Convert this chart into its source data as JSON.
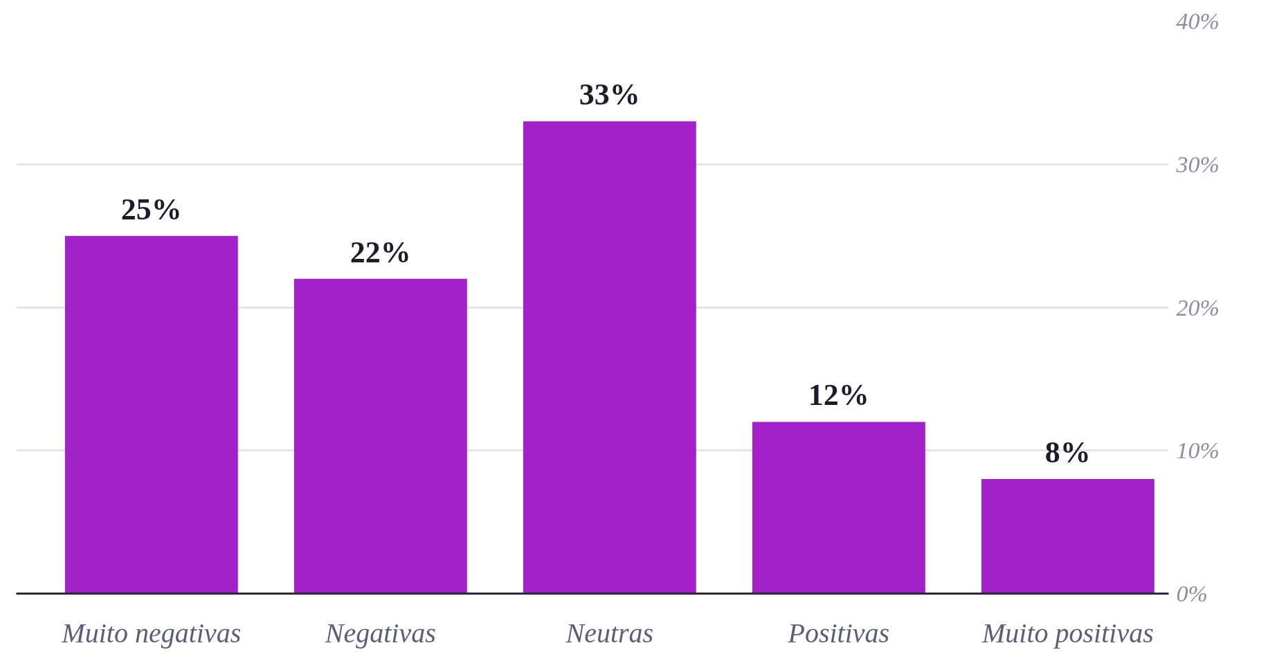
{
  "chart_data": {
    "type": "bar",
    "categories": [
      "Muito negativas",
      "Negativas",
      "Neutras",
      "Positivas",
      "Muito positivas"
    ],
    "values": [
      25,
      22,
      33,
      12,
      8
    ],
    "value_labels": [
      "25%",
      "22%",
      "33%",
      "12%",
      "8%"
    ],
    "color": "#a321c9",
    "ylim": [
      0,
      40
    ],
    "yticks": [
      {
        "value": 0,
        "label": "0%"
      },
      {
        "value": 10,
        "label": "10%"
      },
      {
        "value": 20,
        "label": "20%"
      },
      {
        "value": 30,
        "label": "30%"
      },
      {
        "value": 40,
        "label": "40%"
      }
    ],
    "grid": "y"
  }
}
